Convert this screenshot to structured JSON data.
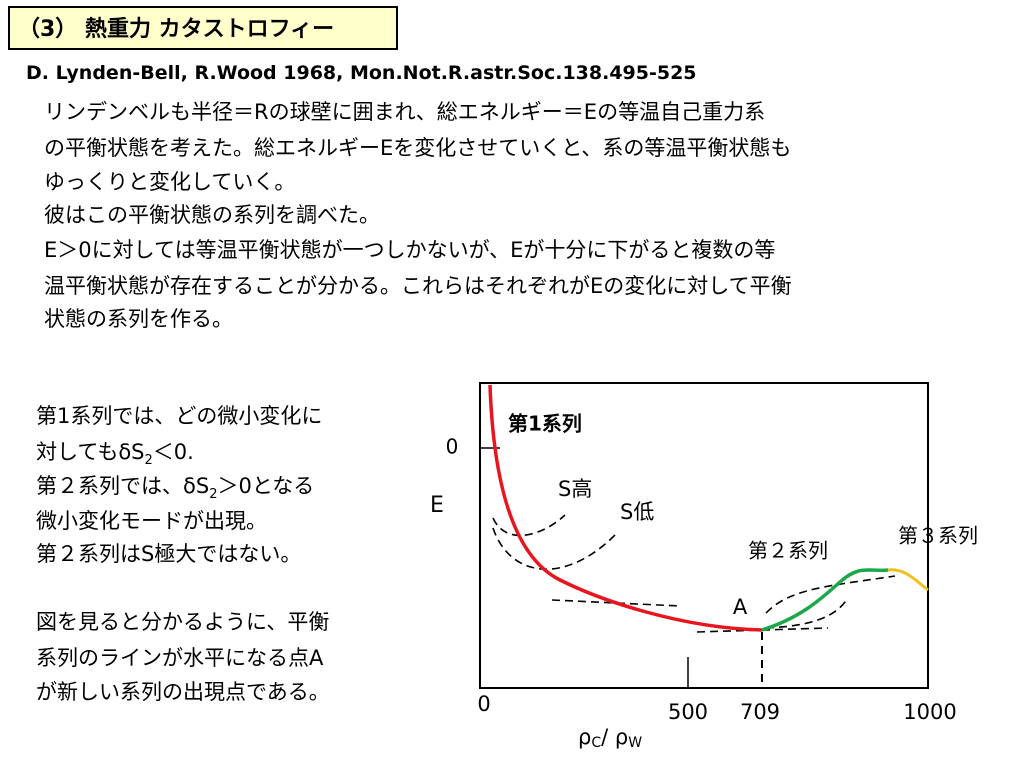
{
  "header": {
    "title": "（3） 熱重力 カタストロフィー"
  },
  "reference": "D. Lynden-Bell, R.Wood 1968, Mon.Not.R.astr.Soc.138.495-525",
  "intro": {
    "lines": [
      "リンデンベルも半径＝Rの球壁に囲まれ、総エネルギー＝Eの等温自己重力系",
      "の平衡状態を考えた。総エネルギーEを変化させていくと、系の等温平衡状態も",
      "ゆっくりと変化していく。",
      "彼はこの平衡状態の系列を調べた。",
      "E＞0に対しては等温平衡状態が一つしかないが、Eが十分に下がると複数の等",
      "温平衡状態が存在することが分かる。これらはそれぞれがEの変化に対して平衡",
      "状態の系列を作る。"
    ]
  },
  "notes": {
    "line1": "第1系列では、どの微小変化に",
    "line2": [
      "対してもδS",
      "2",
      "＜0."
    ],
    "line3": [
      "第２系列では、δS",
      "2",
      "＞0となる"
    ],
    "line4": "微小変化モードが出現。",
    "line5": "第２系列はS極大ではない。",
    "line6": "図を見ると分かるように、平衡",
    "line7": "系列のラインが水平になる点A",
    "line8": "が新しい系列の出現点である。"
  },
  "figure": {
    "series1": "第1系列",
    "series2": "第２系列",
    "series3": "第３系列",
    "s_high": "S高",
    "s_low": "S低",
    "point": "A",
    "y_label": "E",
    "y_tick": "0",
    "x_ticks": [
      "0",
      "500",
      "709",
      "1000"
    ],
    "x_label": [
      "ρ",
      "C",
      "/ ρ",
      "W"
    ]
  }
}
